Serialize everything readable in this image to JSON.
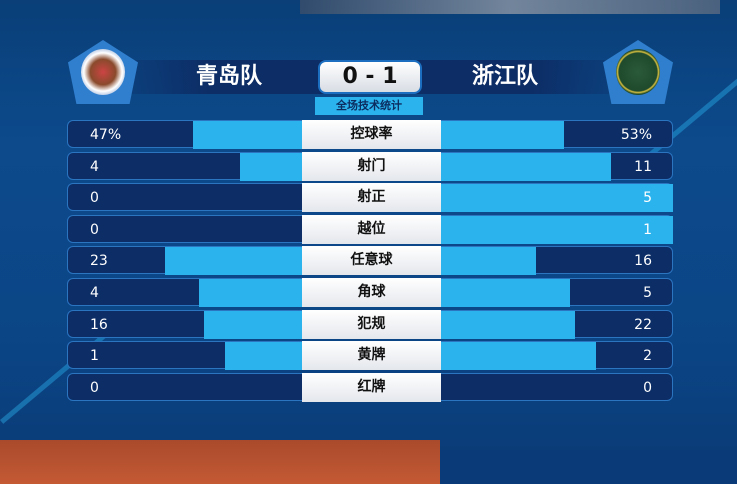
{
  "header": {
    "home_team": "青岛队",
    "away_team": "浙江队",
    "score": "0 - 1",
    "subtitle": "全场技术统计"
  },
  "colors": {
    "bar": "#2bb3ee",
    "row": "#0c2d66",
    "background": "#0b4586"
  },
  "stats": [
    {
      "label": "控球率",
      "home": "47%",
      "away": "53%",
      "home_value": 47,
      "away_value": 53
    },
    {
      "label": "射门",
      "home": "4",
      "away": "11",
      "home_value": 4,
      "away_value": 11
    },
    {
      "label": "射正",
      "home": "0",
      "away": "5",
      "home_value": 0,
      "away_value": 5
    },
    {
      "label": "越位",
      "home": "0",
      "away": "1",
      "home_value": 0,
      "away_value": 1
    },
    {
      "label": "任意球",
      "home": "23",
      "away": "16",
      "home_value": 23,
      "away_value": 16
    },
    {
      "label": "角球",
      "home": "4",
      "away": "5",
      "home_value": 4,
      "away_value": 5
    },
    {
      "label": "犯规",
      "home": "16",
      "away": "22",
      "home_value": 16,
      "away_value": 22
    },
    {
      "label": "黄牌",
      "home": "1",
      "away": "2",
      "home_value": 1,
      "away_value": 2
    },
    {
      "label": "红牌",
      "home": "0",
      "away": "0",
      "home_value": 0,
      "away_value": 0
    }
  ]
}
